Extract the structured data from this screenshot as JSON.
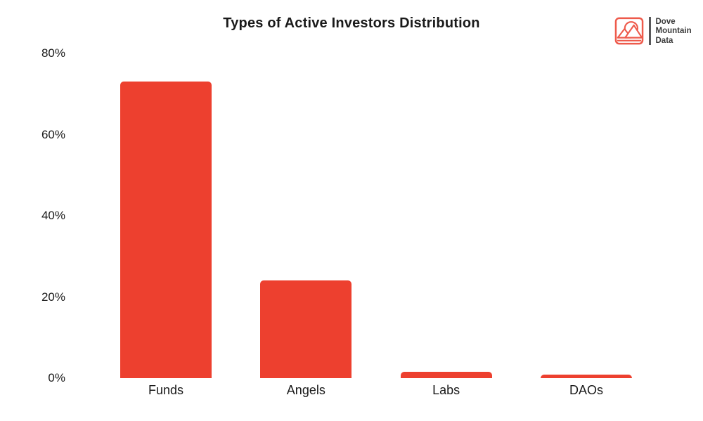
{
  "header": {
    "title": "Types of Active Investors Distribution"
  },
  "logo": {
    "lines": [
      "Dove",
      "Mountain",
      "Data"
    ],
    "icon_color": "#ee5a4b",
    "divider_color": "#58585a",
    "text_color": "#3b3b3b"
  },
  "chart_data": {
    "type": "bar",
    "title": "Types of Active Investors Distribution",
    "categories": [
      "Funds",
      "Angels",
      "Labs",
      "DAOs"
    ],
    "values": [
      73,
      24,
      1.6,
      0.9
    ],
    "unit": "%",
    "xlabel": "",
    "ylabel": "",
    "ylim": [
      0,
      80
    ],
    "yticks": [
      0,
      20,
      40,
      60,
      80
    ],
    "ytick_labels": [
      "0%",
      "20%",
      "40%",
      "60%",
      "80%"
    ],
    "bar_color": "#ed402f",
    "grid": false,
    "legend": false,
    "axis_lines": false
  }
}
